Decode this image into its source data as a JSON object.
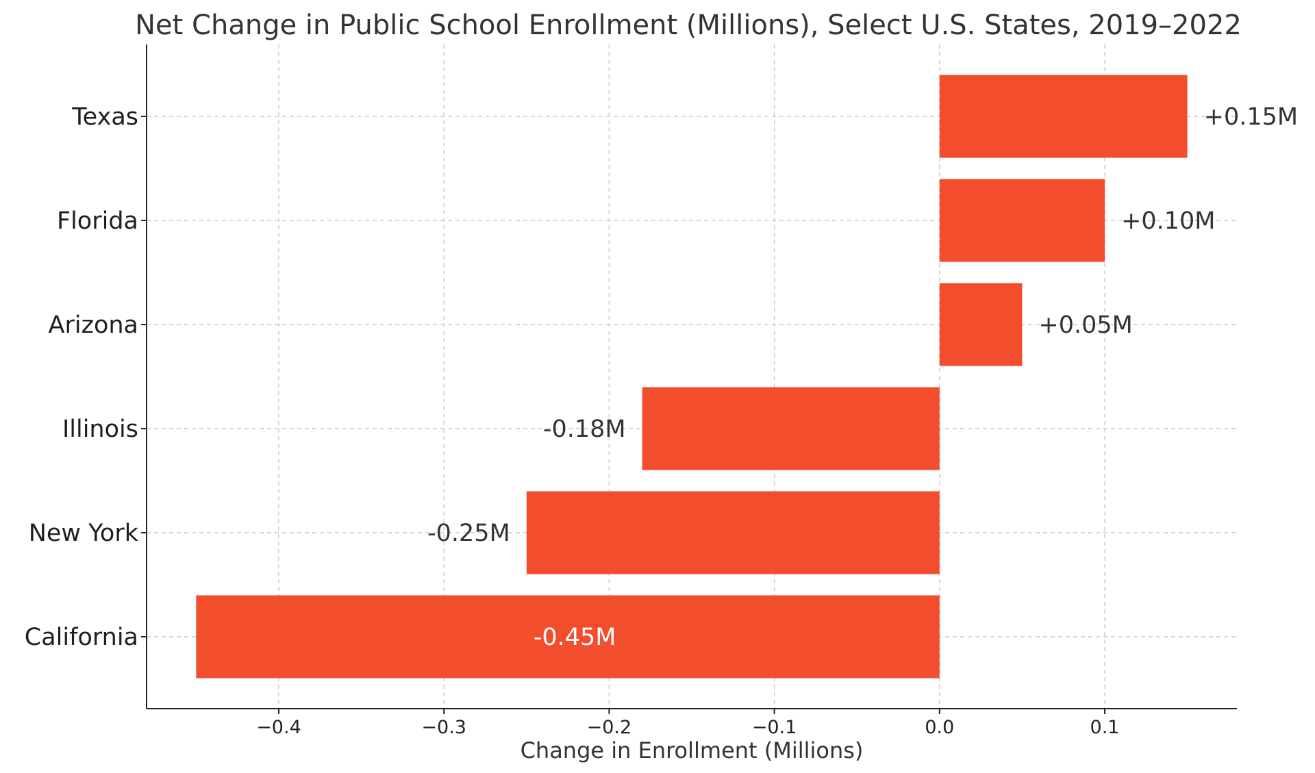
{
  "chart_data": {
    "type": "bar",
    "orientation": "horizontal",
    "title": "Net Change in Public School Enrollment (Millions), Select U.S. States, 2019–2022",
    "xlabel": "Change in Enrollment (Millions)",
    "ylabel": "",
    "categories": [
      "Texas",
      "Florida",
      "Arizona",
      "Illinois",
      "New York",
      "California"
    ],
    "values": [
      0.15,
      0.1,
      0.05,
      -0.18,
      -0.25,
      -0.45
    ],
    "value_labels": [
      "+0.15M",
      "+0.10M",
      "+0.05M",
      "-0.18M",
      "-0.25M",
      "-0.45M"
    ],
    "xlim": [
      -0.48,
      0.18
    ],
    "xticks": [
      -0.4,
      -0.3,
      -0.2,
      -0.1,
      0.0,
      0.1
    ],
    "xtick_labels": [
      "−0.4",
      "−0.3",
      "−0.2",
      "−0.1",
      "0.0",
      "0.1"
    ],
    "grid": true,
    "bar_color": "#f24e2e",
    "label_color": "#333333",
    "inside_label_color": "#ffffff"
  }
}
